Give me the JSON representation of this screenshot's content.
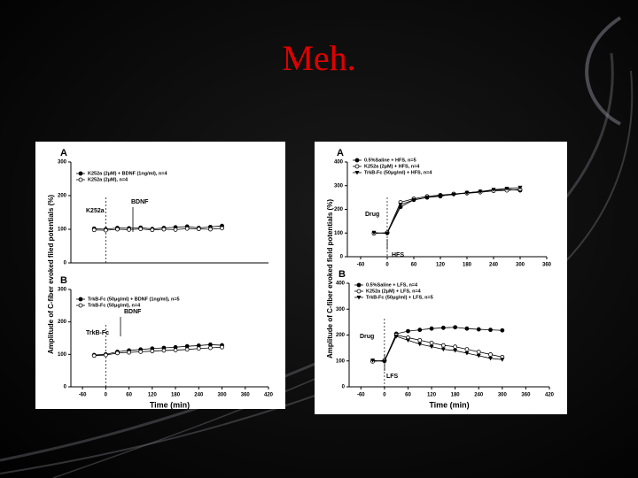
{
  "title": "Meh.",
  "chart_data": [
    {
      "type": "line",
      "label": "A",
      "ylabel": "Amplitude of C-fiber evoked filed potentials (%)",
      "annotations": [
        "BDNF",
        "K252a"
      ],
      "x": [
        -30,
        0,
        30,
        60,
        90,
        120,
        150,
        180,
        210,
        240,
        270,
        300
      ],
      "xlim": [
        -90,
        420
      ],
      "ylim": [
        0,
        300
      ],
      "yticks": [
        0,
        100,
        200,
        300
      ],
      "series": [
        {
          "name": "K252a (2μM) + BDNF (1ng/ml), n=4",
          "color": "#000000",
          "marker": "filled",
          "values": [
            102,
            100,
            104,
            103,
            105,
            101,
            104,
            106,
            108,
            104,
            107,
            110
          ]
        },
        {
          "name": "K252a (2μM), n=4",
          "color": "#000000",
          "marker": "open",
          "values": [
            98,
            97,
            100,
            99,
            101,
            98,
            100,
            99,
            102,
            101,
            100,
            103
          ]
        }
      ]
    },
    {
      "type": "line",
      "label": "B",
      "xlabel": "Time (min)",
      "annotations": [
        "BDNF",
        "TrkB-Fc"
      ],
      "x": [
        -30,
        0,
        30,
        60,
        90,
        120,
        150,
        180,
        210,
        240,
        270,
        300
      ],
      "xlim": [
        -90,
        420
      ],
      "xticks": [
        -60,
        0,
        60,
        120,
        180,
        240,
        300,
        360,
        420
      ],
      "ylim": [
        0,
        300
      ],
      "yticks": [
        0,
        100,
        200,
        300
      ],
      "series": [
        {
          "name": "TrkB-Fc (50μg/ml) + BDNF (1ng/ml), n=5",
          "color": "#000000",
          "marker": "filled",
          "values": [
            98,
            100,
            108,
            112,
            115,
            118,
            120,
            122,
            125,
            127,
            130,
            128
          ]
        },
        {
          "name": "TrkB-Fc (50μg/ml), n=4",
          "color": "#000000",
          "marker": "open",
          "values": [
            96,
            98,
            104,
            106,
            108,
            110,
            112,
            113,
            115,
            118,
            120,
            122
          ]
        }
      ]
    },
    {
      "type": "line",
      "label": "A",
      "ylabel": "Amplitude of C-fiber evoked field potentials (%)",
      "annotations": [
        "Drug",
        "HFS"
      ],
      "x": [
        -30,
        0,
        30,
        60,
        90,
        120,
        150,
        180,
        210,
        240,
        270,
        300
      ],
      "xlim": [
        -90,
        360
      ],
      "xticks": [
        -60,
        0,
        60,
        120,
        180,
        240,
        300,
        360
      ],
      "ylim": [
        0,
        400
      ],
      "yticks": [
        0,
        100,
        200,
        300,
        400
      ],
      "series": [
        {
          "name": "0.5%Saline + HFS, n=5",
          "color": "#000000",
          "marker": "filled",
          "values": [
            100,
            100,
            210,
            240,
            250,
            255,
            265,
            270,
            275,
            280,
            285,
            280
          ]
        },
        {
          "name": "K252a (2μM) + HFS, n=4",
          "color": "#000000",
          "marker": "open",
          "values": [
            98,
            102,
            230,
            245,
            255,
            260,
            265,
            268,
            272,
            278,
            280,
            285
          ]
        },
        {
          "name": "TrkB-Fc (50μg/ml) + HFS, n=4",
          "color": "#000000",
          "marker": "triangle",
          "values": [
            102,
            98,
            220,
            240,
            250,
            258,
            262,
            270,
            275,
            283,
            288,
            292
          ]
        }
      ]
    },
    {
      "type": "line",
      "label": "B",
      "xlabel": "Time (min)",
      "annotations": [
        "Drug",
        "LFS"
      ],
      "x": [
        -30,
        0,
        30,
        60,
        90,
        120,
        150,
        180,
        210,
        240,
        270,
        300
      ],
      "xlim": [
        -90,
        420
      ],
      "xticks": [
        -60,
        0,
        60,
        120,
        180,
        240,
        300,
        360,
        420
      ],
      "ylim": [
        0,
        400
      ],
      "yticks": [
        0,
        100,
        200,
        300,
        400
      ],
      "series": [
        {
          "name": "0.5%Saline + LFS, n=4",
          "color": "#000000",
          "marker": "filled",
          "values": [
            100,
            100,
            205,
            215,
            220,
            225,
            228,
            230,
            225,
            222,
            220,
            218
          ]
        },
        {
          "name": "K252a (2μM) + LFS, n=4",
          "color": "#000000",
          "marker": "open",
          "values": [
            98,
            102,
            200,
            190,
            180,
            170,
            160,
            155,
            145,
            135,
            125,
            115
          ]
        },
        {
          "name": "TrkB-Fc (50μg/ml) + LFS, n=5",
          "color": "#000000",
          "marker": "triangle",
          "values": [
            102,
            98,
            195,
            180,
            165,
            155,
            145,
            140,
            130,
            120,
            110,
            105
          ]
        }
      ]
    }
  ]
}
